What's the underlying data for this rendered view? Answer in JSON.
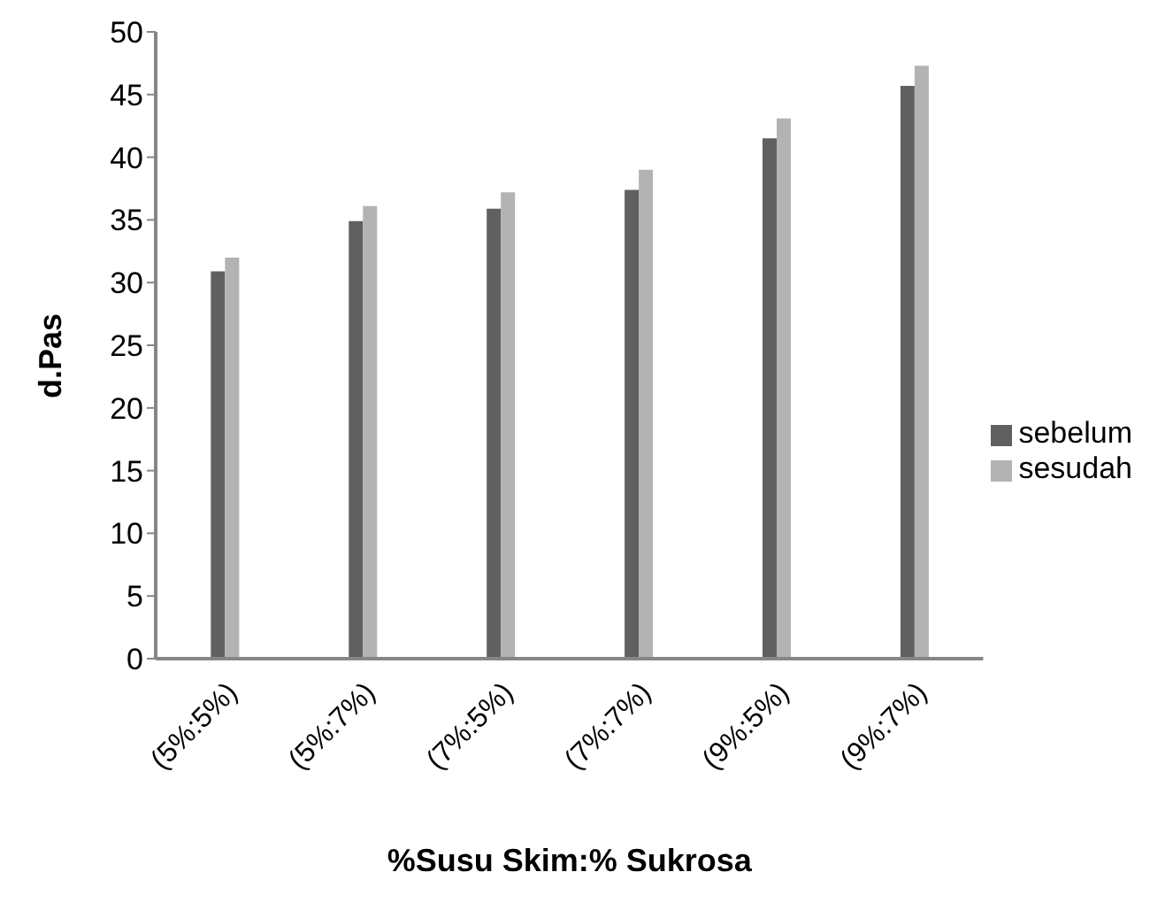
{
  "chart_data": {
    "type": "bar",
    "xlabel": "%Susu Skim:% Sukrosa",
    "ylabel": "d.Pas",
    "categories": [
      "(5%:5%)",
      "(5%:7%)",
      "(7%:5%)",
      "(7%:7%)",
      "(9%:5%)",
      "(9%:7%)"
    ],
    "series": [
      {
        "name": "sebelum",
        "color": "#606060",
        "values": [
          30.9,
          34.9,
          35.9,
          37.4,
          41.5,
          45.7
        ]
      },
      {
        "name": "sesudah",
        "color": "#b3b3b3",
        "values": [
          32.0,
          36.1,
          37.2,
          39.0,
          43.1,
          47.3
        ]
      }
    ],
    "ylim": [
      0,
      50
    ],
    "yticks": [
      0,
      5,
      10,
      15,
      20,
      25,
      30,
      35,
      40,
      45,
      50
    ],
    "grid": false,
    "legend": "right"
  }
}
